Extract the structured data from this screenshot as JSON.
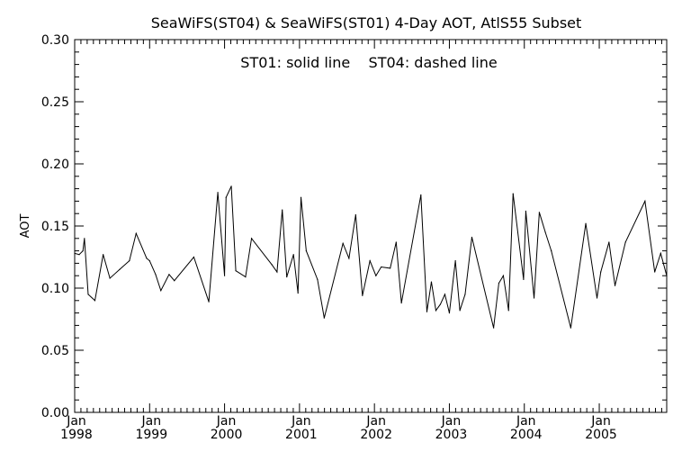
{
  "chart_data": {
    "type": "line",
    "title": "SeaWiFS(ST04) & SeaWiFS(ST01) 4-Day AOT, AtlS55 Subset",
    "ylabel": "AOT",
    "xlabel": "",
    "annotation": "ST01: solid line    ST04: dashed line",
    "ylim": [
      0,
      0.3
    ],
    "xlim": [
      1998.0,
      2005.9
    ],
    "grid": false,
    "y_ticks": [
      "0.00",
      "0.05",
      "0.10",
      "0.15",
      "0.20",
      "0.25",
      "0.30"
    ],
    "y_tick_values": [
      0,
      0.05,
      0.1,
      0.15,
      0.2,
      0.25,
      0.3
    ],
    "x_ticks": [
      {
        "value": 1998,
        "month": "Jan",
        "year": "1998"
      },
      {
        "value": 1999,
        "month": "Jan",
        "year": "1999"
      },
      {
        "value": 2000,
        "month": "Jan",
        "year": "2000"
      },
      {
        "value": 2001,
        "month": "Jan",
        "year": "2001"
      },
      {
        "value": 2002,
        "month": "Jan",
        "year": "2002"
      },
      {
        "value": 2003,
        "month": "Jan",
        "year": "2003"
      },
      {
        "value": 2004,
        "month": "Jan",
        "year": "2004"
      },
      {
        "value": 2005,
        "month": "Jan",
        "year": "2005"
      }
    ],
    "series": [
      {
        "line": "solid",
        "color": "#000000",
        "x": [
          1998.0,
          1998.06,
          1998.11,
          1998.13,
          1998.18,
          1998.27,
          1998.38,
          1998.47,
          1998.6,
          1998.73,
          1998.82,
          1998.96,
          1999.0,
          1999.08,
          1999.15,
          1999.26,
          1999.33,
          1999.59,
          1999.79,
          1999.91,
          2000.0,
          2000.02,
          2000.09,
          2000.15,
          2000.28,
          2000.36,
          2000.63,
          2000.7,
          2000.77,
          2000.83,
          2000.92,
          2000.98,
          2001.02,
          2001.09,
          2001.24,
          2001.33,
          2001.58,
          2001.66,
          2001.75,
          2001.84,
          2001.94,
          2002.02,
          2002.09,
          2002.21,
          2002.29,
          2002.36,
          2002.62,
          2002.7,
          2002.76,
          2002.82,
          2002.88,
          2002.94,
          2003.0,
          2003.08,
          2003.14,
          2003.21,
          2003.3,
          2003.59,
          2003.66,
          2003.72,
          2003.79,
          2003.85,
          2003.99,
          2004.02,
          2004.13,
          2004.2,
          2004.28,
          2004.36,
          2004.62,
          2004.82,
          2004.97,
          2005.02,
          2005.13,
          2005.21,
          2005.35,
          2005.61,
          2005.74,
          2005.82,
          2005.9
        ],
        "y": [
          0.128,
          0.127,
          0.13,
          0.14,
          0.095,
          0.09,
          0.127,
          0.108,
          0.115,
          0.122,
          0.144,
          0.124,
          0.122,
          0.111,
          0.098,
          0.111,
          0.106,
          0.125,
          0.089,
          0.177,
          0.11,
          0.173,
          0.182,
          0.114,
          0.109,
          0.14,
          0.119,
          0.113,
          0.163,
          0.109,
          0.127,
          0.096,
          0.173,
          0.13,
          0.107,
          0.076,
          0.136,
          0.124,
          0.159,
          0.094,
          0.122,
          0.11,
          0.117,
          0.116,
          0.137,
          0.088,
          0.175,
          0.081,
          0.105,
          0.082,
          0.087,
          0.095,
          0.08,
          0.122,
          0.082,
          0.095,
          0.141,
          0.068,
          0.104,
          0.11,
          0.082,
          0.176,
          0.107,
          0.162,
          0.092,
          0.161,
          0.145,
          0.13,
          0.068,
          0.152,
          0.092,
          0.113,
          0.137,
          0.102,
          0.137,
          0.17,
          0.113,
          0.128,
          0.11
        ]
      }
    ]
  }
}
